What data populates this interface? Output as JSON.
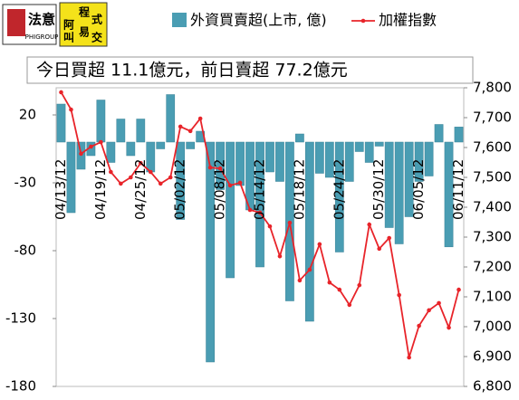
{
  "logos": {
    "brand1": "法意",
    "brand1_sub": "PHIGROUP",
    "brand2_left": [
      "阿",
      "叫"
    ],
    "brand2_right": [
      "程",
      "式",
      "易",
      "交"
    ]
  },
  "chart_data": {
    "type": "bar",
    "annotation": "今日買超 11.1億元，前日賣超 77.2億元",
    "categories": [
      "04/13/12",
      null,
      null,
      null,
      "04/19/12",
      null,
      null,
      null,
      "04/25/12",
      null,
      null,
      null,
      "05/02/12",
      null,
      null,
      null,
      "05/08/12",
      null,
      null,
      null,
      "05/14/12",
      null,
      null,
      null,
      "05/18/12",
      null,
      null,
      null,
      "05/24/12",
      null,
      null,
      null,
      "05/30/12",
      null,
      null,
      null,
      "06/05/12",
      null,
      null,
      null,
      "06/11/12"
    ],
    "series": [
      {
        "name": "外資買賣超(上市, 億)",
        "type": "bar",
        "color": "#4a9db3",
        "values": [
          28,
          -52,
          -20,
          -10,
          31,
          -15,
          17,
          -10,
          17,
          -22,
          -5,
          35,
          -57,
          -5,
          8,
          -162,
          -35,
          -100,
          -32,
          -50,
          -92,
          -22,
          -29,
          -117,
          6,
          -132,
          -23,
          -26,
          -81,
          -29,
          -7,
          -15,
          -3,
          -63,
          -75,
          -55,
          -29,
          -25,
          13,
          -77.2,
          11.1
        ]
      },
      {
        "name": "加權指數",
        "type": "line",
        "axis": "y2",
        "color": "#e8242a",
        "values": [
          7785,
          7727,
          7579,
          7603,
          7618,
          7518,
          7479,
          7500,
          7548,
          7518,
          7479,
          7500,
          7670,
          7655,
          7697,
          7533,
          7530,
          7473,
          7482,
          7391,
          7382,
          7336,
          7236,
          7348,
          7155,
          7191,
          7276,
          7148,
          7124,
          7073,
          7139,
          7342,
          7261,
          7297,
          7106,
          6897,
          7003,
          7055,
          7079,
          6997,
          7124
        ]
      }
    ],
    "ylim": [
      -180,
      40
    ],
    "yticks": [
      20,
      -30,
      -80,
      -130,
      -180
    ],
    "y2lim": [
      6800,
      7800
    ],
    "y2ticks": [
      {
        "value": 7800,
        "label": "7,800"
      },
      {
        "value": 7700,
        "label": "7,700"
      },
      {
        "value": 7600,
        "label": "7,600"
      },
      {
        "value": 7500,
        "label": "7,500"
      },
      {
        "value": 7400,
        "label": "7,400"
      },
      {
        "value": 7300,
        "label": "7,300"
      },
      {
        "value": 7200,
        "label": "7,200"
      },
      {
        "value": 7100,
        "label": "7,100"
      },
      {
        "value": 7000,
        "label": "7,000"
      },
      {
        "value": 6900,
        "label": "6,900"
      },
      {
        "value": 6800,
        "label": "6,800"
      }
    ],
    "legend": "top"
  }
}
